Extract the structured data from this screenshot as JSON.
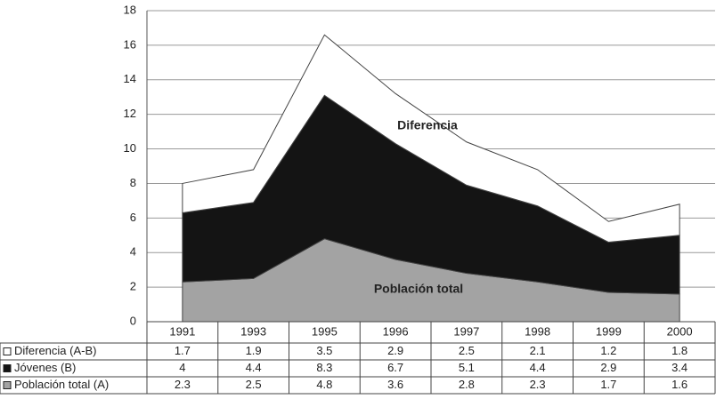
{
  "chart_data": {
    "type": "stacked_area",
    "categories": [
      "1991",
      "1993",
      "1995",
      "1996",
      "1997",
      "1998",
      "1999",
      "2000"
    ],
    "series": [
      {
        "name": "Población total (A)",
        "color": "#a3a3a3",
        "values": [
          2.3,
          2.5,
          4.8,
          3.6,
          2.8,
          2.3,
          1.7,
          1.6
        ]
      },
      {
        "name": "Jóvenes  (B)",
        "color": "#141414",
        "values": [
          4,
          4.4,
          8.3,
          6.7,
          5.1,
          4.4,
          2.9,
          3.4
        ]
      },
      {
        "name": "Diferencia (A-B)",
        "color": "#ffffff",
        "values": [
          1.7,
          1.9,
          3.5,
          2.9,
          2.5,
          2.1,
          1.2,
          1.8
        ]
      }
    ],
    "annotations": [
      "Diferencia",
      "Población total"
    ],
    "ylim": [
      0,
      18
    ],
    "yticks": [
      0,
      2,
      4,
      6,
      8,
      10,
      12,
      14,
      16,
      18
    ],
    "grid": true
  }
}
